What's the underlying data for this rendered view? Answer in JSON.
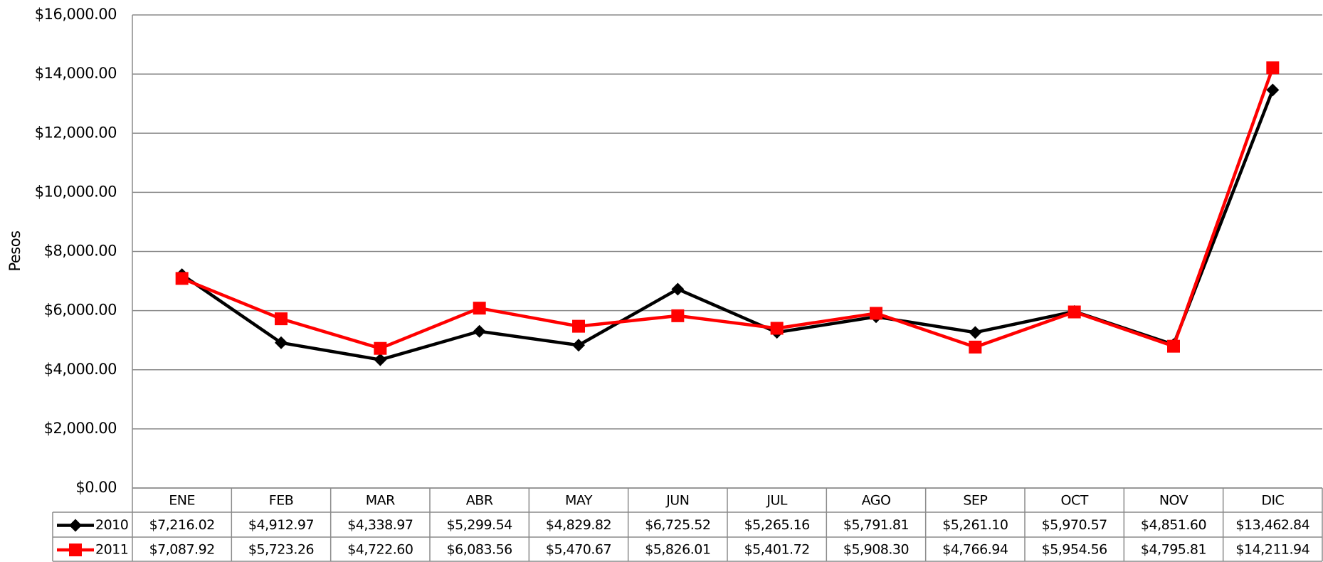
{
  "chart_data": {
    "type": "line",
    "y_label": "Pesos",
    "categories": [
      "ENE",
      "FEB",
      "MAR",
      "ABR",
      "MAY",
      "JUN",
      "JUL",
      "AGO",
      "SEP",
      "OCT",
      "NOV",
      "DIC"
    ],
    "series": [
      {
        "name": "2010",
        "color": "#000000",
        "marker": "diamond",
        "values": [
          7216.02,
          4912.97,
          4338.97,
          5299.54,
          4829.82,
          6725.52,
          5265.16,
          5791.81,
          5261.1,
          5970.57,
          4851.6,
          13462.84
        ],
        "value_labels": [
          "$7,216.02",
          "$4,912.97",
          "$4,338.97",
          "$5,299.54",
          "$4,829.82",
          "$6,725.52",
          "$5,265.16",
          "$5,791.81",
          "$5,261.10",
          "$5,970.57",
          "$4,851.60",
          "$13,462.84"
        ]
      },
      {
        "name": "2011",
        "color": "#ff0000",
        "marker": "square",
        "values": [
          7087.92,
          5723.26,
          4722.6,
          6083.56,
          5470.67,
          5826.01,
          5401.72,
          5908.3,
          4766.94,
          5954.56,
          4795.81,
          14211.94
        ],
        "value_labels": [
          "$7,087.92",
          "$5,723.26",
          "$4,722.60",
          "$6,083.56",
          "$5,470.67",
          "$5,826.01",
          "$5,401.72",
          "$5,908.30",
          "$4,766.94",
          "$5,954.56",
          "$4,795.81",
          "$14,211.94"
        ]
      }
    ],
    "ylim": [
      0,
      16000
    ],
    "yticks": [
      {
        "value": 0,
        "label": "$0.00"
      },
      {
        "value": 2000,
        "label": "$2,000.00"
      },
      {
        "value": 4000,
        "label": "$4,000.00"
      },
      {
        "value": 6000,
        "label": "$6,000.00"
      },
      {
        "value": 8000,
        "label": "$8,000.00"
      },
      {
        "value": 10000,
        "label": "$10,000.00"
      },
      {
        "value": 12000,
        "label": "$12,000.00"
      },
      {
        "value": 14000,
        "label": "$14,000.00"
      },
      {
        "value": 16000,
        "label": "$16,000.00"
      }
    ],
    "grid": true
  }
}
